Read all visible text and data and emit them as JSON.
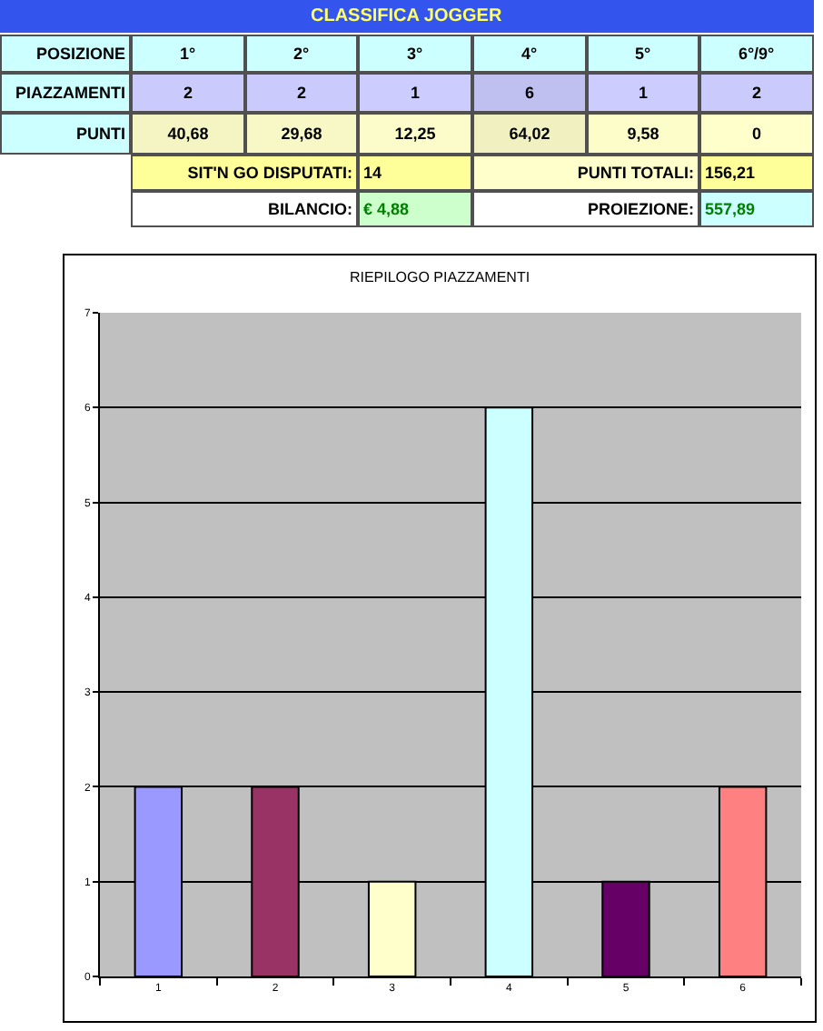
{
  "chart_data": [
    {
      "type": "heatmap",
      "title": "CLASSIFICA JOGGER",
      "xlabel": "POSIZIONE",
      "categories": [
        "1°",
        "2°",
        "3°",
        "4°",
        "5°",
        "6°/9°"
      ],
      "y_categories": [
        "PIAZZAMENTI",
        "PUNTI"
      ],
      "cells": [
        [
          2,
          2,
          1,
          6,
          1,
          2
        ],
        [
          40.68,
          29.68,
          12.25,
          64.02,
          9.58,
          0
        ]
      ],
      "cell_labels": [
        [
          "2",
          "2",
          "1",
          "6",
          "1",
          "2"
        ],
        [
          "40,68",
          "29,68",
          "12,25",
          "64,02",
          "9,58",
          "0"
        ]
      ],
      "annotations": [
        "SIT'N GO DISPUTATI:",
        "14",
        "PUNTI TOTALI:",
        "156,21",
        "BILANCIO:",
        "€ 4,88",
        "PROIEZIONE:",
        "557,89"
      ]
    },
    {
      "type": "bar",
      "title": "RIEPILOGO PIAZZAMENTI",
      "categories": [
        "1",
        "2",
        "3",
        "4",
        "5",
        "6"
      ],
      "values": [
        2,
        2,
        1,
        6,
        1,
        2
      ],
      "colors": [
        "#9999ff",
        "#993366",
        "#ffffcc",
        "#ccffff",
        "#660066",
        "#ff8080"
      ],
      "ylim": [
        0,
        7
      ],
      "yticks": [
        0,
        1,
        2,
        3,
        4,
        5,
        6,
        7
      ],
      "grid": "y"
    }
  ]
}
